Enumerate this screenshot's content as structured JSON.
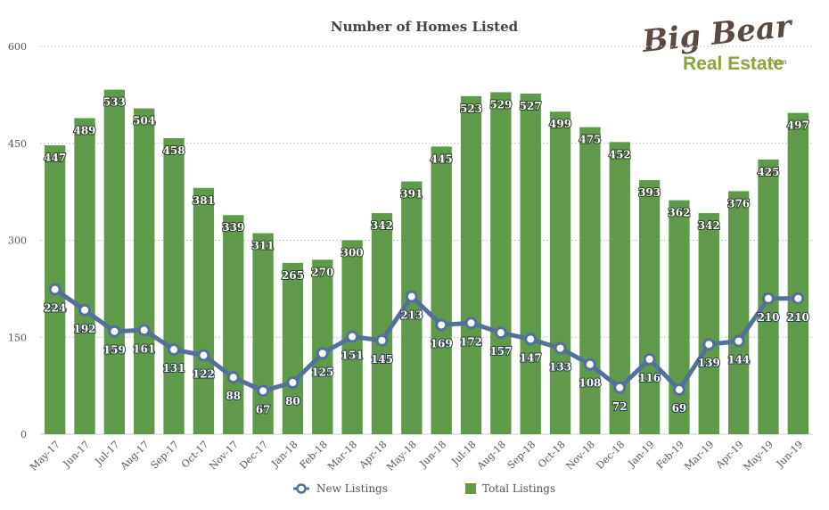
{
  "chart_data": {
    "type": "bar",
    "title": "Number of Homes Listed",
    "xlabel": "",
    "ylabel": "",
    "ylim": [
      0,
      600
    ],
    "yticks": [
      0,
      150,
      300,
      450,
      600
    ],
    "grid": true,
    "legend_position": "bottom",
    "categories": [
      "May-17",
      "Jun-17",
      "Jul-17",
      "Aug-17",
      "Sep-17",
      "Oct-17",
      "Nov-17",
      "Dec-17",
      "Jan-18",
      "Feb-18",
      "Mar-18",
      "Apr-18",
      "May-18",
      "Jun-18",
      "Jul-18",
      "Aug-18",
      "Sep-18",
      "Oct-18",
      "Nov-18",
      "Dec-18",
      "Jan-19",
      "Feb-19",
      "Mar-19",
      "Apr-19",
      "May-19",
      "Jun-19"
    ],
    "series": [
      {
        "name": "Total Listings",
        "type": "bar",
        "color": "#5e9a4a",
        "values": [
          447,
          489,
          533,
          504,
          458,
          381,
          339,
          311,
          265,
          270,
          300,
          342,
          391,
          445,
          523,
          529,
          527,
          499,
          475,
          452,
          393,
          362,
          342,
          376,
          425,
          497
        ]
      },
      {
        "name": "New Listings",
        "type": "line",
        "color": "#52709a",
        "values": [
          224,
          192,
          159,
          161,
          131,
          122,
          88,
          67,
          80,
          125,
          151,
          145,
          213,
          169,
          172,
          157,
          147,
          133,
          108,
          72,
          116,
          69,
          139,
          144,
          210,
          210
        ]
      }
    ]
  },
  "logo": {
    "line1": "Big Bear",
    "line2": "Real Estate",
    "suffix": ".com"
  }
}
